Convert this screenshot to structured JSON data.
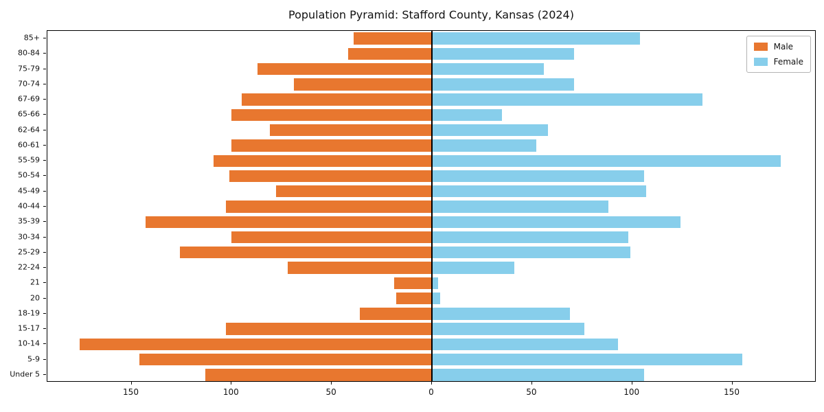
{
  "chart_data": {
    "type": "bar",
    "subtype": "population-pyramid",
    "title": "Population Pyramid: Stafford County, Kansas (2024)",
    "categories": [
      "85+",
      "80-84",
      "75-79",
      "70-74",
      "67-69",
      "65-66",
      "62-64",
      "60-61",
      "55-59",
      "50-54",
      "45-49",
      "40-44",
      "35-39",
      "30-34",
      "25-29",
      "22-24",
      "21",
      "20",
      "18-19",
      "15-17",
      "10-14",
      "5-9",
      "Under 5"
    ],
    "series": [
      {
        "name": "Male",
        "side": "left",
        "color": "#e8772f",
        "values": [
          39,
          42,
          87,
          69,
          95,
          100,
          81,
          100,
          109,
          101,
          78,
          103,
          143,
          100,
          126,
          72,
          19,
          18,
          36,
          103,
          176,
          146,
          113
        ]
      },
      {
        "name": "Female",
        "side": "right",
        "color": "#87ceeb",
        "values": [
          104,
          71,
          56,
          71,
          135,
          35,
          58,
          52,
          174,
          106,
          107,
          88,
          124,
          98,
          99,
          41,
          3,
          4,
          69,
          76,
          93,
          155,
          106
        ]
      }
    ],
    "xticks": [
      -150,
      -100,
      -50,
      0,
      50,
      100,
      150
    ],
    "xlim": [
      -192,
      192
    ],
    "xlabel": "",
    "ylabel": "",
    "legend_position": "upper right",
    "grid": false,
    "axis_color": "#000000",
    "background": "#ffffff"
  }
}
